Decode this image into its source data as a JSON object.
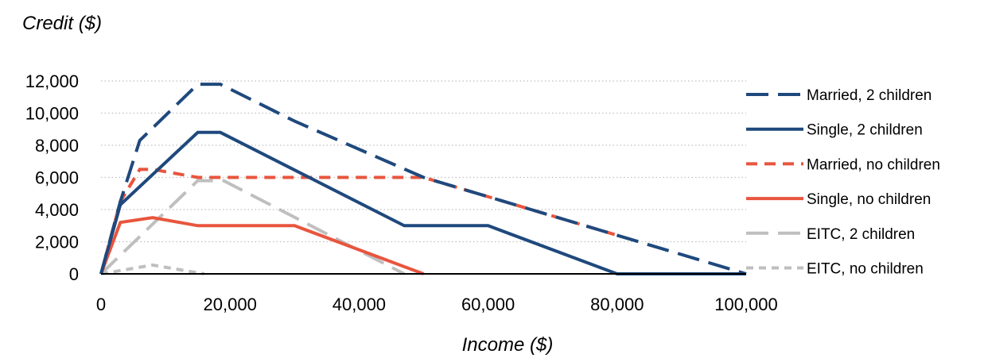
{
  "chart_data": {
    "type": "line",
    "ylabel": "Credit ($)",
    "xlabel": "Income ($)",
    "xlim": [
      0,
      100000
    ],
    "ylim": [
      0,
      12000
    ],
    "x_ticks": [
      "0",
      "20,000",
      "40,000",
      "60,000",
      "80,000",
      "100,000"
    ],
    "x_tick_values": [
      0,
      20000,
      40000,
      60000,
      80000,
      100000
    ],
    "y_ticks": [
      "0",
      "2,000",
      "4,000",
      "6,000",
      "8,000",
      "10,000",
      "12,000"
    ],
    "y_tick_values": [
      0,
      2000,
      4000,
      6000,
      8000,
      10000,
      12000
    ],
    "grid": "horizontal dotted",
    "legend_position": "right",
    "series": [
      {
        "name": "Married, 2 children",
        "color": "#1f497d",
        "dash": "long-dash",
        "x": [
          0,
          3000,
          6000,
          15000,
          18500,
          30000,
          50000,
          80000,
          100000
        ],
        "y": [
          0,
          4500,
          8300,
          11800,
          11800,
          9500,
          6000,
          2400,
          0
        ]
      },
      {
        "name": "Single, 2 children",
        "color": "#1f497d",
        "dash": "solid",
        "x": [
          0,
          3000,
          15000,
          18500,
          47000,
          60000,
          80000,
          100000
        ],
        "y": [
          0,
          4300,
          8800,
          8800,
          3000,
          3000,
          0,
          0
        ]
      },
      {
        "name": "Married, no children",
        "color": "#e8553e",
        "dash": "dash",
        "x": [
          0,
          3000,
          6000,
          8000,
          15000,
          30000,
          50000,
          80000
        ],
        "y": [
          0,
          4500,
          6500,
          6500,
          6000,
          6000,
          6000,
          2400
        ]
      },
      {
        "name": "Single, no children",
        "color": "#e8553e",
        "dash": "solid",
        "x": [
          0,
          3000,
          8000,
          15000,
          30000,
          50000
        ],
        "y": [
          0,
          3200,
          3500,
          3000,
          3000,
          0
        ]
      },
      {
        "name": "EITC, 2 children",
        "color": "#bfbfbf",
        "dash": "long-dash",
        "x": [
          0,
          15000,
          19000,
          47000
        ],
        "y": [
          0,
          5800,
          5800,
          0
        ]
      },
      {
        "name": "EITC, no children",
        "color": "#bfbfbf",
        "dash": "short-dash",
        "x": [
          0,
          8000,
          16000
        ],
        "y": [
          0,
          550,
          0
        ]
      }
    ]
  }
}
